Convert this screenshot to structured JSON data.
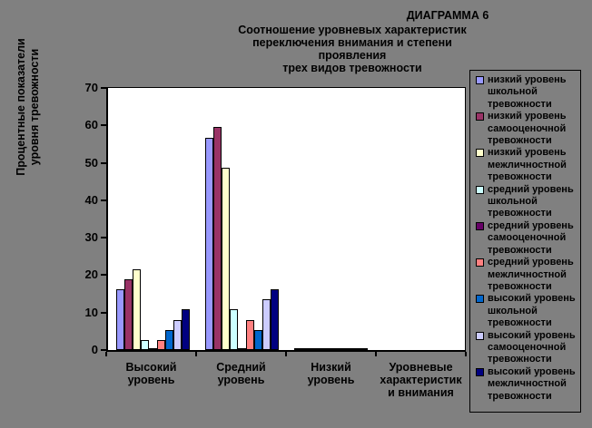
{
  "title_lines": [
    "ДИАГРАММА 6",
    "Соотношение уровневых характеристик",
    "переключения внимания и степени проявления",
    "трех видов тревожности"
  ],
  "y_axis_title_lines": [
    "Процентные показатели",
    "уровня тревожности"
  ],
  "colors": {
    "background": "#808080",
    "plot_background": "#FFFFFF",
    "axis": "#000000",
    "text": "#000000"
  },
  "chart_data": {
    "type": "bar",
    "title": "ДИАГРАММА 6 Соотношение уровневых характеристик переключения внимания и степени проявления трех видов тревожности",
    "xlabel": "",
    "ylabel": "Процентные показатели уровня тревожности",
    "ylim": [
      0,
      70
    ],
    "y_ticks": [
      0,
      10,
      20,
      30,
      40,
      50,
      60,
      70
    ],
    "gridlines": false,
    "legend_position": "right",
    "categories": [
      "Высокий уровень",
      "Средний уровень",
      "Низкий уровень",
      "Уровневые характеристик и внимания"
    ],
    "series": [
      {
        "name": "низкий уровень школьной тревожности",
        "color": "#9999FF",
        "values": [
          16.2,
          56.8,
          0.3,
          null
        ]
      },
      {
        "name": "низкий уровень самооценочной тревожности",
        "color": "#993366",
        "values": [
          18.9,
          59.5,
          0.3,
          null
        ]
      },
      {
        "name": "низкий уровень межличностной тревожности",
        "color": "#FFFFCC",
        "values": [
          21.6,
          48.6,
          0.3,
          null
        ]
      },
      {
        "name": "средний уровень школьной тревожности",
        "color": "#CCFFFF",
        "values": [
          2.7,
          10.8,
          0.3,
          null
        ]
      },
      {
        "name": "средний уровень самооценочной тревожности",
        "color": "#660066",
        "values": [
          0.3,
          0.3,
          0.3,
          null
        ]
      },
      {
        "name": "средний уровень межличностной тревожности",
        "color": "#FF8080",
        "values": [
          2.7,
          8.1,
          0.3,
          null
        ]
      },
      {
        "name": "высокий уровень школьной тревожности",
        "color": "#0066CC",
        "values": [
          5.4,
          5.4,
          0.3,
          null
        ]
      },
      {
        "name": "высокий уровень самооценочной тревожности",
        "color": "#CCCCFF",
        "values": [
          8.1,
          13.5,
          0.3,
          null
        ]
      },
      {
        "name": "высокий уровень межличностной тревожности",
        "color": "#000080",
        "values": [
          10.8,
          16.2,
          0.3,
          null
        ]
      }
    ]
  }
}
